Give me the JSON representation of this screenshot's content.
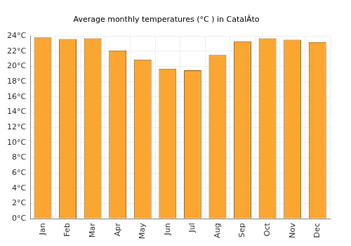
{
  "chart_data": {
    "type": "bar",
    "title": "Average monthly temperatures (°C ) in CatalĂto",
    "categories": [
      "Jan",
      "Feb",
      "Mar",
      "Apr",
      "May",
      "Jun",
      "Jul",
      "Aug",
      "Sep",
      "Oct",
      "Nov",
      "Dec"
    ],
    "values": [
      23.8,
      23.6,
      23.7,
      22.1,
      20.9,
      19.7,
      19.5,
      21.5,
      23.3,
      23.7,
      23.5,
      23.2
    ],
    "color": "#fba631",
    "ylim": [
      0,
      24
    ],
    "yticks": [
      {
        "value": 0,
        "label": "0°C"
      },
      {
        "value": 2,
        "label": "2°C"
      },
      {
        "value": 4,
        "label": "4°C"
      },
      {
        "value": 6,
        "label": "6°C"
      },
      {
        "value": 8,
        "label": "8°C"
      },
      {
        "value": 10,
        "label": "10°C"
      },
      {
        "value": 12,
        "label": "12°C"
      },
      {
        "value": 14,
        "label": "14°C"
      },
      {
        "value": 16,
        "label": "16°C"
      },
      {
        "value": 18,
        "label": "18°C"
      },
      {
        "value": 20,
        "label": "20°C"
      },
      {
        "value": 22,
        "label": "22°C"
      },
      {
        "value": 24,
        "label": "24°C"
      }
    ],
    "grid": true
  }
}
